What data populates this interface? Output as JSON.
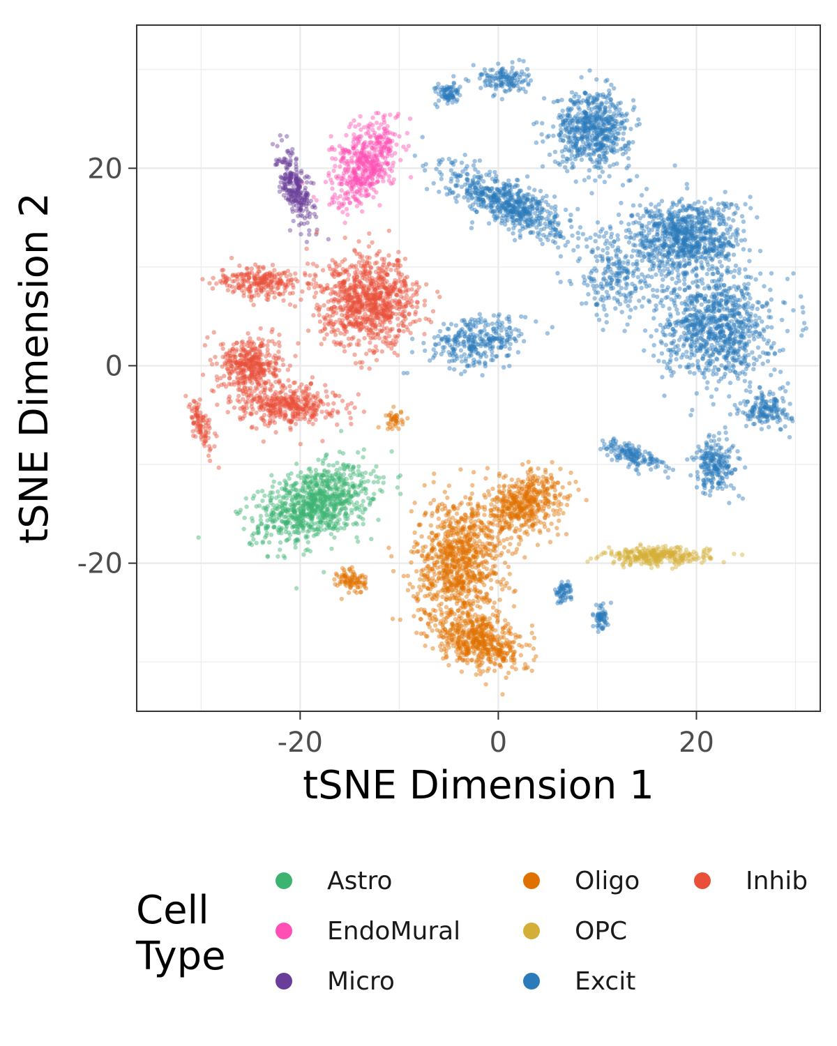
{
  "chart_data": {
    "type": "scatter",
    "title": "",
    "xlabel": "tSNE Dimension 1",
    "ylabel": "tSNE Dimension 2",
    "xlim": [
      -36.5,
      32.5
    ],
    "ylim": [
      -35,
      34.5
    ],
    "xticks": [
      -20,
      0,
      20
    ],
    "yticks": [
      -20,
      0,
      20
    ],
    "grid": true,
    "legend_title": "Cell Type",
    "legend_position": "bottom",
    "series": [
      {
        "name": "Astro",
        "color": "#3CB371",
        "clusters": [
          {
            "cx": -18.5,
            "cy": -14,
            "rx": 5.5,
            "ry": 3.2,
            "rot": 20,
            "n": 900
          }
        ]
      },
      {
        "name": "EndoMural",
        "color": "#FF4FB4",
        "clusters": [
          {
            "cx": -13.3,
            "cy": 20.5,
            "rx": 2.6,
            "ry": 4.3,
            "rot": -30,
            "n": 500
          }
        ]
      },
      {
        "name": "Micro",
        "color": "#6A3D9A",
        "clusters": [
          {
            "cx": -20.5,
            "cy": 18,
            "rx": 1.2,
            "ry": 3.8,
            "rot": 20,
            "n": 260
          }
        ]
      },
      {
        "name": "Oligo",
        "color": "#E07000",
        "clusters": [
          {
            "cx": -4,
            "cy": -20,
            "rx": 4,
            "ry": 6,
            "rot": 0,
            "n": 900
          },
          {
            "cx": -2,
            "cy": -28,
            "rx": 4.5,
            "ry": 2.2,
            "rot": -20,
            "n": 500
          },
          {
            "cx": 2.5,
            "cy": -14,
            "rx": 4,
            "ry": 2.5,
            "rot": 30,
            "n": 500
          },
          {
            "cx": -14.8,
            "cy": -21.8,
            "rx": 1.3,
            "ry": 1.2,
            "rot": 0,
            "n": 90
          },
          {
            "cx": -10.5,
            "cy": -5.5,
            "rx": 0.8,
            "ry": 0.9,
            "rot": 0,
            "n": 40
          }
        ]
      },
      {
        "name": "OPC",
        "color": "#D4AF37",
        "clusters": [
          {
            "cx": 16,
            "cy": -19.3,
            "rx": 4.8,
            "ry": 0.8,
            "rot": 0,
            "n": 300
          }
        ]
      },
      {
        "name": "Excit",
        "color": "#2B7BBA",
        "clusters": [
          {
            "cx": 9.5,
            "cy": 24,
            "rx": 3.5,
            "ry": 3.5,
            "rot": 0,
            "n": 600
          },
          {
            "cx": -5,
            "cy": 27.5,
            "rx": 1.2,
            "ry": 1,
            "rot": 0,
            "n": 80
          },
          {
            "cx": 0.5,
            "cy": 29,
            "rx": 2.2,
            "ry": 1.3,
            "rot": 0,
            "n": 130
          },
          {
            "cx": 1,
            "cy": 16.5,
            "rx": 6,
            "ry": 2,
            "rot": -25,
            "n": 600
          },
          {
            "cx": 19,
            "cy": 13,
            "rx": 5,
            "ry": 3.5,
            "rot": 0,
            "n": 800
          },
          {
            "cx": 22,
            "cy": 4,
            "rx": 5,
            "ry": 5,
            "rot": 0,
            "n": 900
          },
          {
            "cx": 27,
            "cy": -4.5,
            "rx": 2.3,
            "ry": 1.6,
            "rot": 0,
            "n": 160
          },
          {
            "cx": 22,
            "cy": -10,
            "rx": 2,
            "ry": 2.5,
            "rot": 0,
            "n": 220
          },
          {
            "cx": -2,
            "cy": 2.5,
            "rx": 4.5,
            "ry": 2.2,
            "rot": 10,
            "n": 300
          },
          {
            "cx": 13.5,
            "cy": -9,
            "rx": 3,
            "ry": 1,
            "rot": -20,
            "n": 150
          },
          {
            "cx": 6.5,
            "cy": -23,
            "rx": 0.8,
            "ry": 1,
            "rot": 0,
            "n": 60
          },
          {
            "cx": 10.3,
            "cy": -25.5,
            "rx": 0.7,
            "ry": 1.1,
            "rot": 0,
            "n": 60
          },
          {
            "cx": 12,
            "cy": 9,
            "rx": 4,
            "ry": 4,
            "rot": 0,
            "n": 250
          }
        ]
      },
      {
        "name": "Inhib",
        "color": "#E8503A",
        "clusters": [
          {
            "cx": -13,
            "cy": 6.5,
            "rx": 4.5,
            "ry": 4,
            "rot": 0,
            "n": 900
          },
          {
            "cx": -25,
            "cy": 0,
            "rx": 2.8,
            "ry": 2.6,
            "rot": 0,
            "n": 400
          },
          {
            "cx": -21,
            "cy": -4,
            "rx": 4.5,
            "ry": 1.8,
            "rot": 0,
            "n": 400
          },
          {
            "cx": -24,
            "cy": 8.5,
            "rx": 4,
            "ry": 1.5,
            "rot": 0,
            "n": 250
          },
          {
            "cx": -30,
            "cy": -6,
            "rx": 0.8,
            "ry": 2.5,
            "rot": 20,
            "n": 100
          }
        ]
      }
    ]
  }
}
